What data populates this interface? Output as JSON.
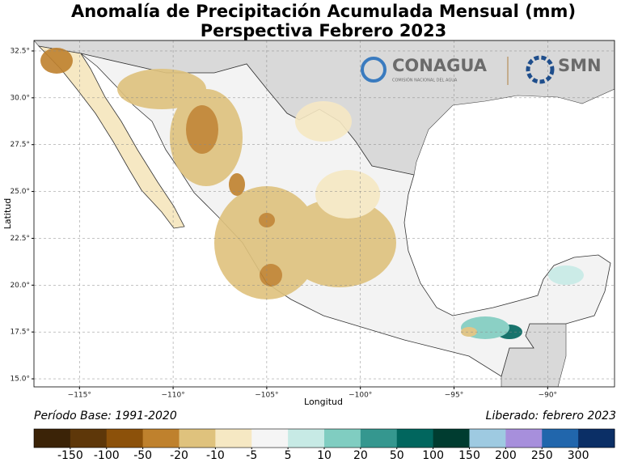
{
  "header": {
    "title": "Anomalía de Precipitación Acumulada Mensual (mm)",
    "subtitle": "Perspectiva Febrero 2023"
  },
  "logos": {
    "conagua": "CONAGUA",
    "conagua_sub": "COMISIÓN NACIONAL DEL AGUA",
    "smn": "SMN"
  },
  "map": {
    "xlabel": "Longitud",
    "ylabel": "Latitud",
    "grid": true,
    "xlim": [
      -117.43,
      -86.43
    ],
    "ylim": [
      14.57,
      33.06
    ],
    "xticks": [
      {
        "value": -115,
        "label": "−115°"
      },
      {
        "value": -110,
        "label": "−110°"
      },
      {
        "value": -105,
        "label": "−105°"
      },
      {
        "value": -100,
        "label": "−100°"
      },
      {
        "value": -95,
        "label": "−95°"
      },
      {
        "value": -90,
        "label": "−90°"
      }
    ],
    "yticks": [
      {
        "value": 15,
        "label": "15.0°"
      },
      {
        "value": 17.5,
        "label": "17.5°"
      },
      {
        "value": 20,
        "label": "20.0°"
      },
      {
        "value": 22.5,
        "label": "22.5°"
      },
      {
        "value": 25,
        "label": "25.0°"
      },
      {
        "value": 27.5,
        "label": "27.5°"
      },
      {
        "value": 30,
        "label": "30.0°"
      },
      {
        "value": 32.5,
        "label": "32.5°"
      }
    ]
  },
  "footer": {
    "base": "Período Base: 1991-2020",
    "released": "Liberado: febrero 2023"
  },
  "colorbar": {
    "colors": [
      "#3b2307",
      "#5e3709",
      "#8c510a",
      "#bf812d",
      "#dfc27d",
      "#f6e8c3",
      "#f5f5f5",
      "#c7eae5",
      "#80cdc1",
      "#35978f",
      "#01665e",
      "#003c30",
      "#9ecae1",
      "#a78fdc",
      "#2166ac",
      "#0b2f66"
    ],
    "ticks": [
      -150,
      -100,
      -50,
      -20,
      -10,
      -5,
      5,
      10,
      20,
      50,
      100,
      150,
      200,
      250,
      300
    ]
  }
}
